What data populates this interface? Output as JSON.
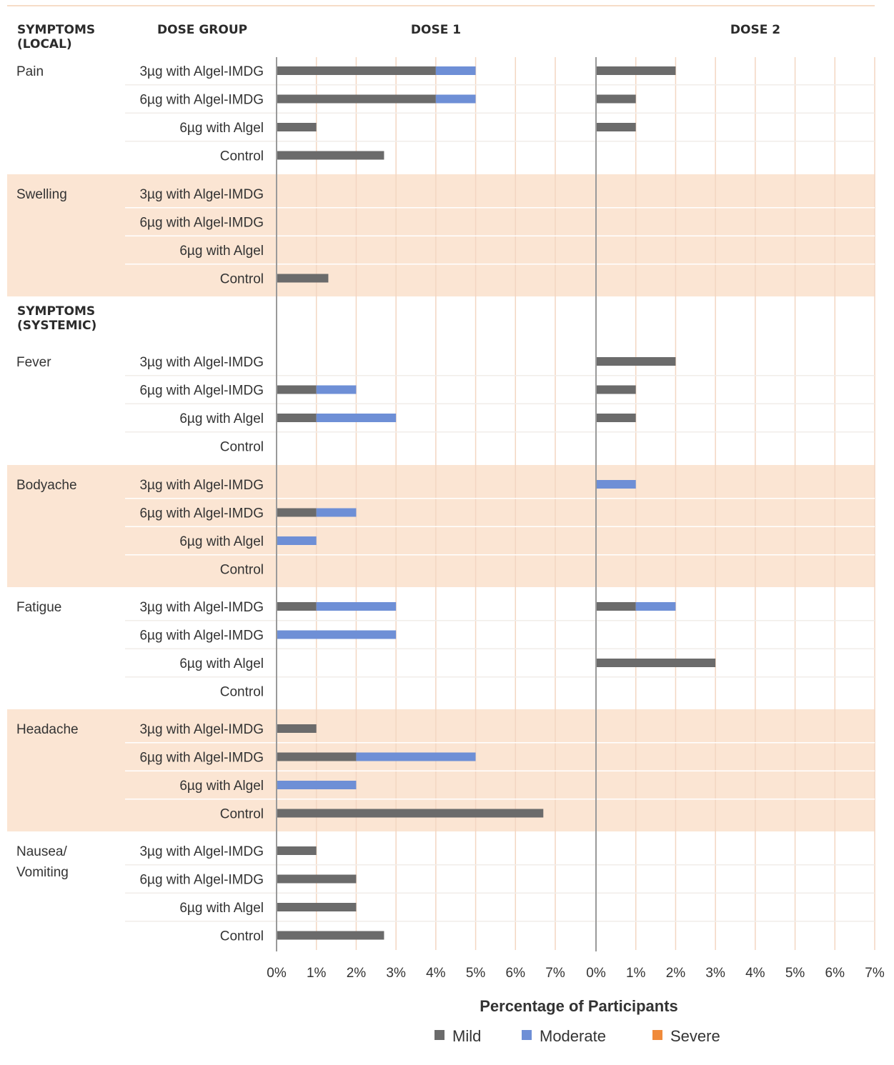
{
  "headers": {
    "local_section": "SYMPTOMS (LOCAL)",
    "systemic_section": "SYMPTOMS (SYSTEMIC)",
    "dose_group": "DOSE GROUP"
  },
  "colors": {
    "mild": "#6b6b6b",
    "moderate": "#6e8fd6",
    "severe": "#f08a3a",
    "band": "#fbe5d3",
    "grid": "#f3d6c2"
  },
  "chart_data": {
    "type": "bar",
    "orientation": "horizontal",
    "stacked": true,
    "panels": [
      "DOSE 1",
      "DOSE 2"
    ],
    "xlabel": "Percentage of Participants",
    "xlim": [
      0,
      7
    ],
    "xticks": [
      "0%",
      "1%",
      "2%",
      "3%",
      "4%",
      "5%",
      "6%",
      "7%"
    ],
    "legend": [
      "Mild",
      "Moderate",
      "Severe"
    ],
    "groups": [
      "3µg with Algel-IMDG",
      "6µg with Algel-IMDG",
      "6µg with Algel",
      "Control"
    ],
    "symptoms": [
      {
        "name": "Pain",
        "section": "local",
        "shaded": false,
        "dose1": [
          [
            4,
            1,
            0
          ],
          [
            4,
            1,
            0
          ],
          [
            1,
            0,
            0
          ],
          [
            2.7,
            0,
            0
          ]
        ],
        "dose2": [
          [
            2,
            0,
            0
          ],
          [
            1,
            0,
            0
          ],
          [
            1,
            0,
            0
          ],
          [
            0,
            0,
            0
          ]
        ]
      },
      {
        "name": "Swelling",
        "section": "local",
        "shaded": true,
        "dose1": [
          [
            0,
            0,
            0
          ],
          [
            0,
            0,
            0
          ],
          [
            0,
            0,
            0
          ],
          [
            1.3,
            0,
            0
          ]
        ],
        "dose2": [
          [
            0,
            0,
            0
          ],
          [
            0,
            0,
            0
          ],
          [
            0,
            0,
            0
          ],
          [
            0,
            0,
            0
          ]
        ]
      },
      {
        "name": "Fever",
        "section": "systemic",
        "shaded": false,
        "dose1": [
          [
            0,
            0,
            0
          ],
          [
            1,
            1,
            0
          ],
          [
            1,
            2,
            0
          ],
          [
            0,
            0,
            0
          ]
        ],
        "dose2": [
          [
            2,
            0,
            0
          ],
          [
            1,
            0,
            0
          ],
          [
            1,
            0,
            0
          ],
          [
            0,
            0,
            0
          ]
        ]
      },
      {
        "name": "Bodyache",
        "section": "systemic",
        "shaded": true,
        "dose1": [
          [
            0,
            0,
            0
          ],
          [
            1,
            1,
            0
          ],
          [
            0,
            1,
            0
          ],
          [
            0,
            0,
            0
          ]
        ],
        "dose2": [
          [
            0,
            1,
            0
          ],
          [
            0,
            0,
            0
          ],
          [
            0,
            0,
            0
          ],
          [
            0,
            0,
            0
          ]
        ]
      },
      {
        "name": "Fatigue",
        "section": "systemic",
        "shaded": false,
        "dose1": [
          [
            1,
            2,
            0
          ],
          [
            0,
            3,
            0
          ],
          [
            0,
            0,
            0
          ],
          [
            0,
            0,
            0
          ]
        ],
        "dose2": [
          [
            1,
            1,
            0
          ],
          [
            0,
            0,
            0
          ],
          [
            3,
            0,
            0
          ],
          [
            0,
            0,
            0
          ]
        ]
      },
      {
        "name": "Headache",
        "section": "systemic",
        "shaded": true,
        "dose1": [
          [
            1,
            0,
            0
          ],
          [
            2,
            3,
            0
          ],
          [
            0,
            2,
            0
          ],
          [
            6.7,
            0,
            0
          ]
        ],
        "dose2": [
          [
            0,
            0,
            0
          ],
          [
            0,
            0,
            0
          ],
          [
            0,
            0,
            0
          ],
          [
            0,
            0,
            0
          ]
        ]
      },
      {
        "name": "Nausea/ Vomiting",
        "section": "systemic",
        "shaded": false,
        "dose1": [
          [
            1,
            0,
            0
          ],
          [
            2,
            0,
            0
          ],
          [
            2,
            0,
            0
          ],
          [
            2.7,
            0,
            0
          ]
        ],
        "dose2": [
          [
            0,
            0,
            0
          ],
          [
            0,
            0,
            0
          ],
          [
            0,
            0,
            0
          ],
          [
            0,
            0,
            0
          ]
        ]
      }
    ]
  }
}
